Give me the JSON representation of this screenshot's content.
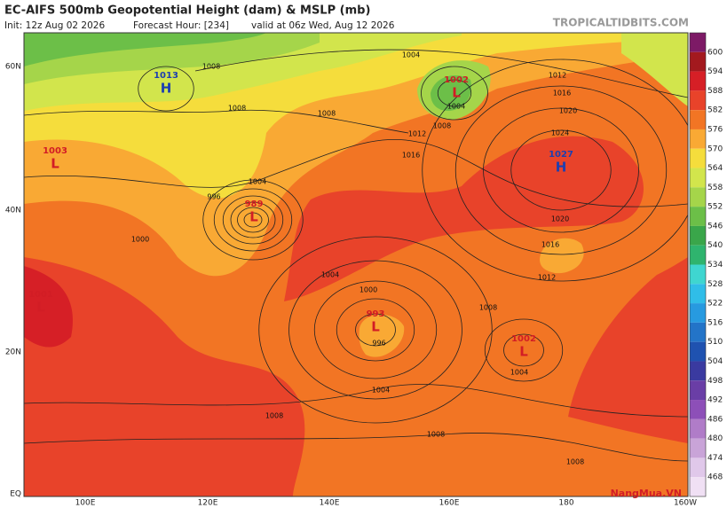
{
  "header": {
    "title": "EC-AIFS 500mb Geopotential Height (dam) & MSLP (mb)",
    "init": "Init: 12z Aug 02 2026",
    "forecast": "Forecast Hour: [234]",
    "valid": "valid at 06z Wed, Aug 12 2026",
    "site": "TROPICALTIDBITS.COM"
  },
  "map": {
    "lat_labels": [
      "60N",
      "40N",
      "20N",
      "EQ"
    ],
    "lon_labels": [
      "100E",
      "120E",
      "140E",
      "160E",
      "180",
      "160W"
    ]
  },
  "colorbar": {
    "labels": [
      "600",
      "594",
      "588",
      "582",
      "576",
      "570",
      "564",
      "558",
      "552",
      "546",
      "540",
      "534",
      "528",
      "522",
      "516",
      "510",
      "504",
      "498",
      "492",
      "486",
      "480",
      "474",
      "468"
    ]
  },
  "centers": [
    {
      "letter": "H",
      "value": "1013"
    },
    {
      "letter": "L",
      "value": "1003"
    },
    {
      "letter": "L",
      "value": "1002"
    },
    {
      "letter": "H",
      "value": "1027"
    },
    {
      "letter": "L",
      "value": "1001"
    },
    {
      "letter": "L",
      "value": "993"
    },
    {
      "letter": "L",
      "value": "1002"
    },
    {
      "letter": "L",
      "value": "989"
    }
  ],
  "isobar_labels": [
    "1004",
    "1008",
    "1008",
    "1008",
    "1012",
    "1016",
    "1020",
    "1024",
    "1016",
    "1012",
    "1008",
    "1004",
    "1004",
    "996",
    "1000",
    "1004",
    "1000",
    "996",
    "1004",
    "1008",
    "1012",
    "1016",
    "1020",
    "1008",
    "1008",
    "1004",
    "1008"
  ],
  "watermark": "NangMua.VN"
}
